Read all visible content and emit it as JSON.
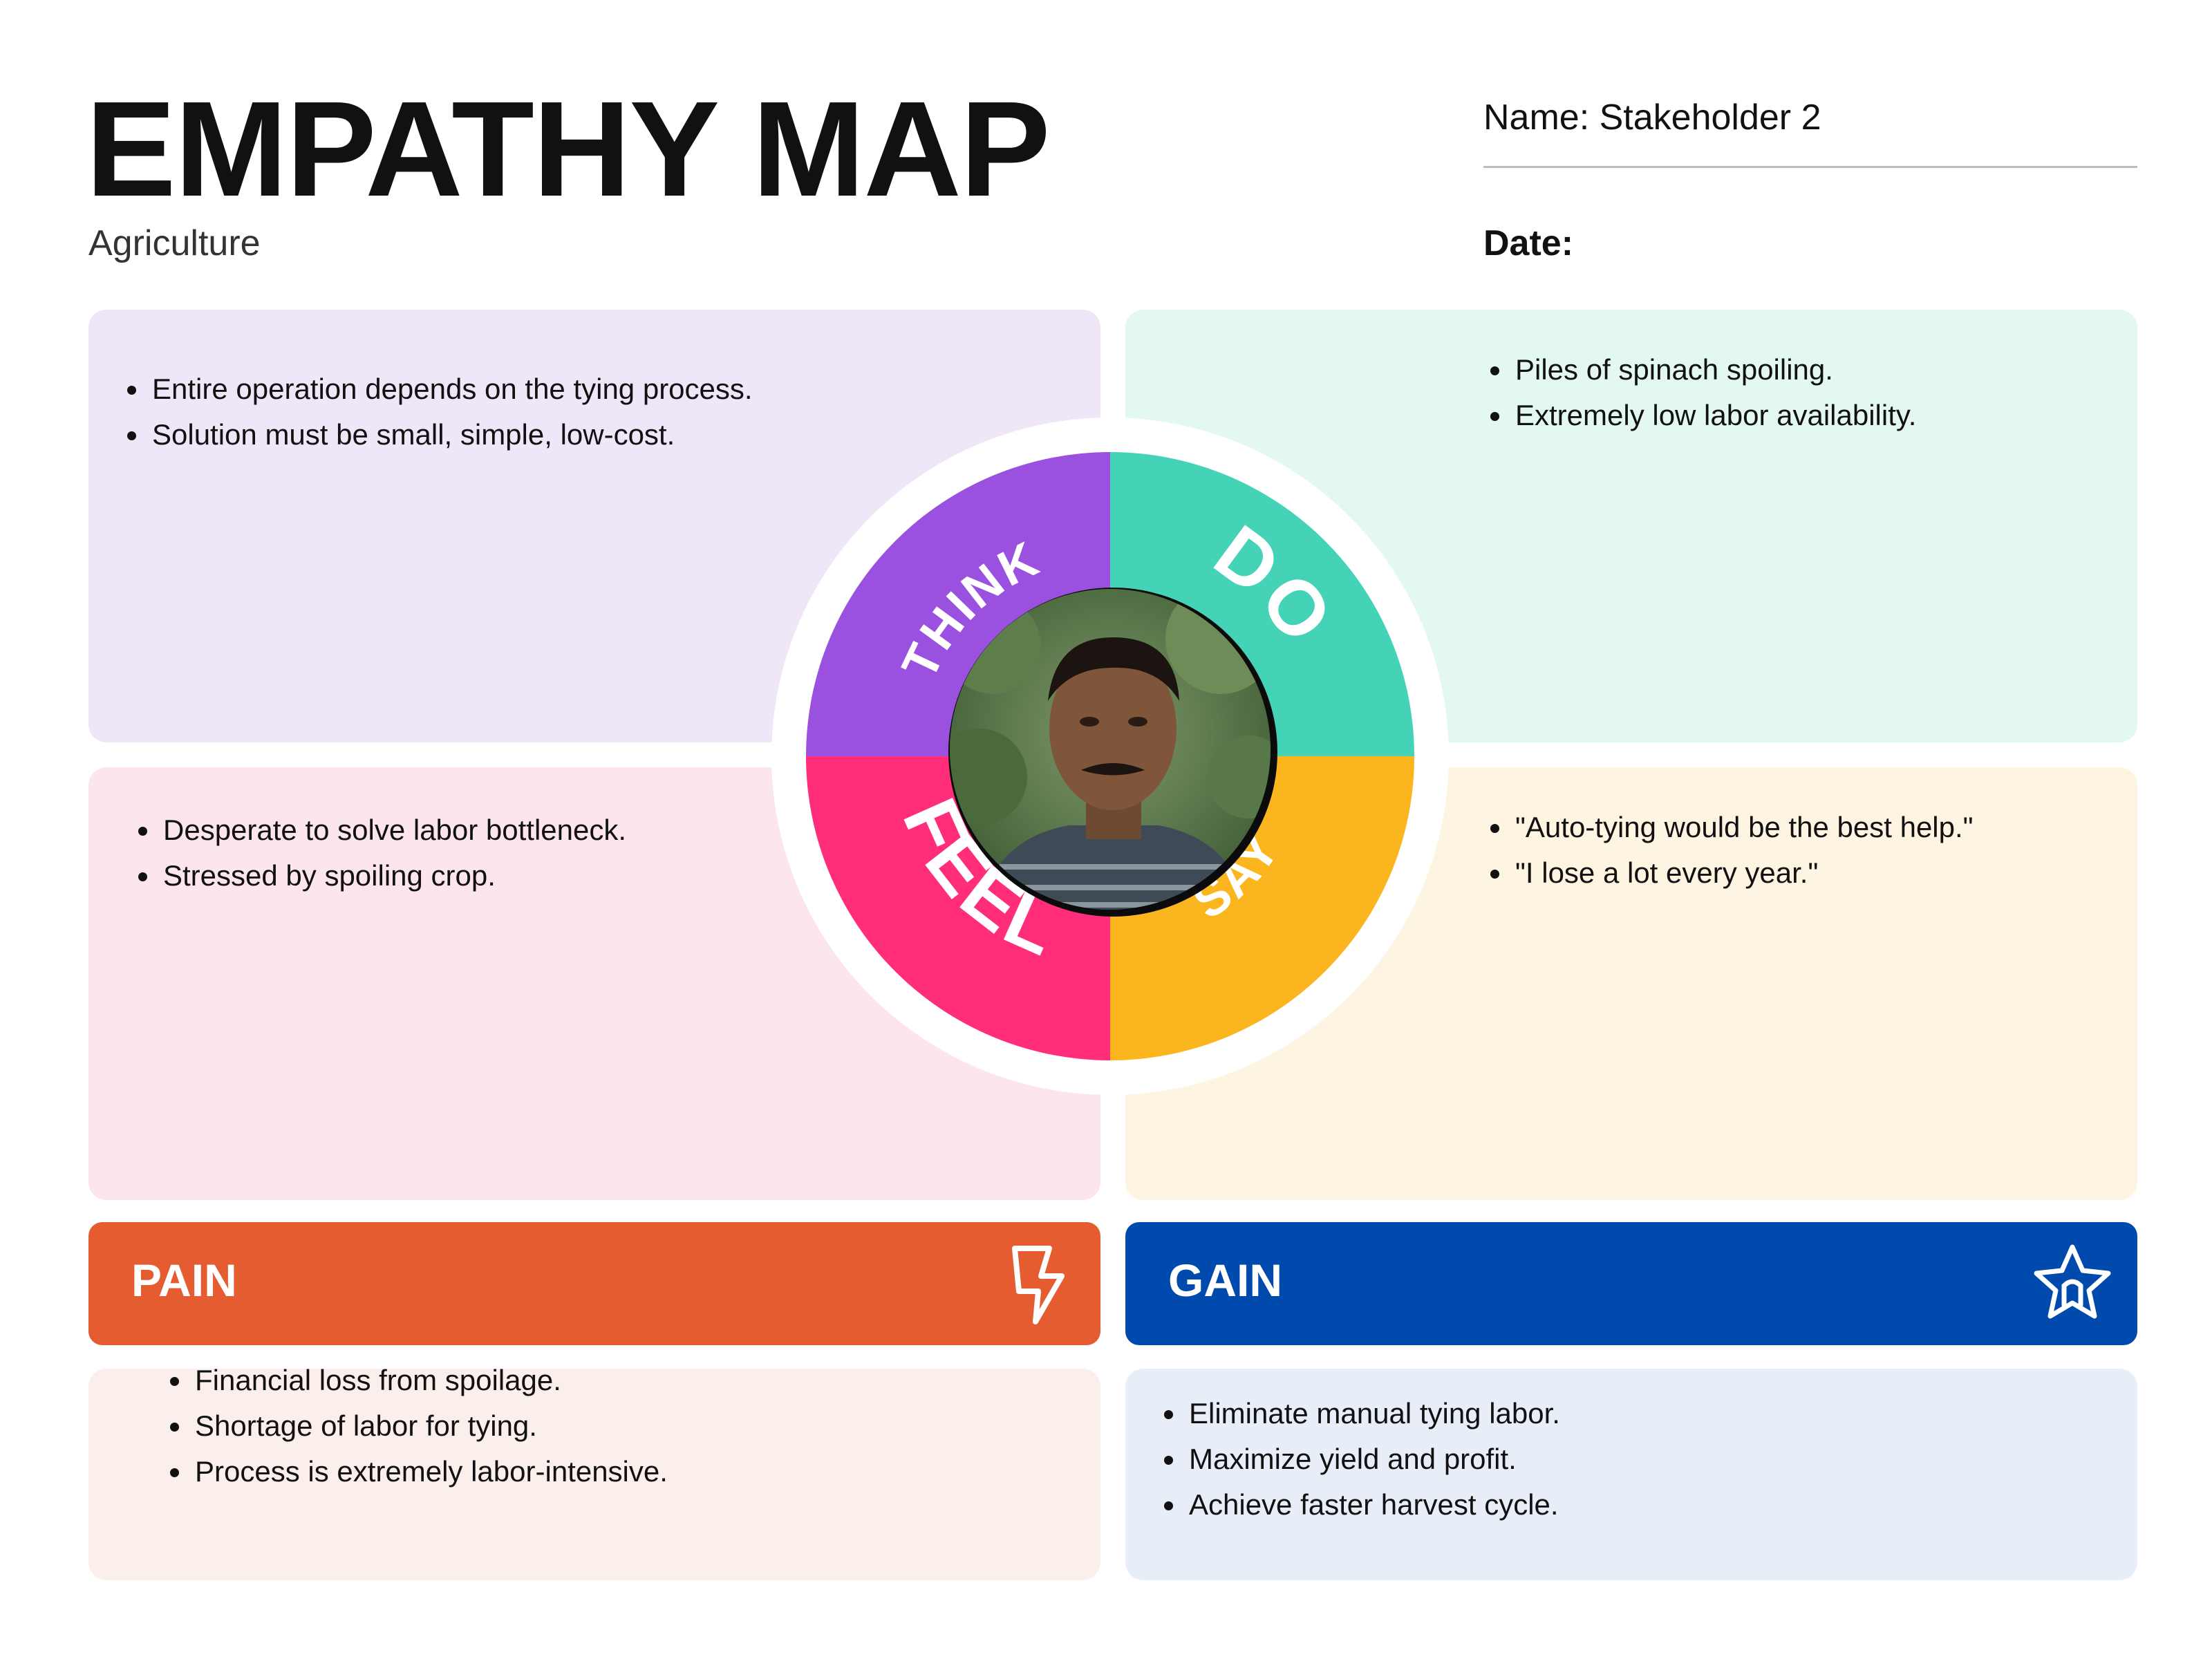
{
  "header": {
    "title": "EMPATHY MAP",
    "subtitle": "Agriculture",
    "name_label": "Name: Stakeholder 2",
    "date_label": "Date:"
  },
  "quadrants": {
    "think": {
      "label": "THINK",
      "color": "#9b51e0",
      "items": [
        "Entire operation depends on the tying process.",
        "Solution must be small, simple, low-cost."
      ]
    },
    "do": {
      "label": "DO",
      "color": "#45d3b8",
      "items": [
        "Piles of spinach spoiling.",
        "Extremely low labor availability."
      ]
    },
    "feel": {
      "label": "FEEL",
      "color": "#ff2d7a",
      "items": [
        "Desperate to solve labor bottleneck.",
        "Stressed by spoiling crop."
      ]
    },
    "say": {
      "label": "SAY",
      "color": "#fbb51e",
      "items": [
        "\"Auto-tying would be the best help.\"",
        "\"I lose a lot every year.\""
      ]
    }
  },
  "pain": {
    "label": "PAIN",
    "icon": "lightning-icon",
    "color": "#e45c30",
    "items": [
      "Financial loss from spoilage.",
      "Shortage of labor for tying.",
      "Process is extremely labor-intensive."
    ]
  },
  "gain": {
    "label": "GAIN",
    "icon": "star-icon",
    "color": "#0049ad",
    "items": [
      "Eliminate manual tying labor.",
      "Maximize yield and profit.",
      "Achieve faster harvest cycle."
    ]
  }
}
